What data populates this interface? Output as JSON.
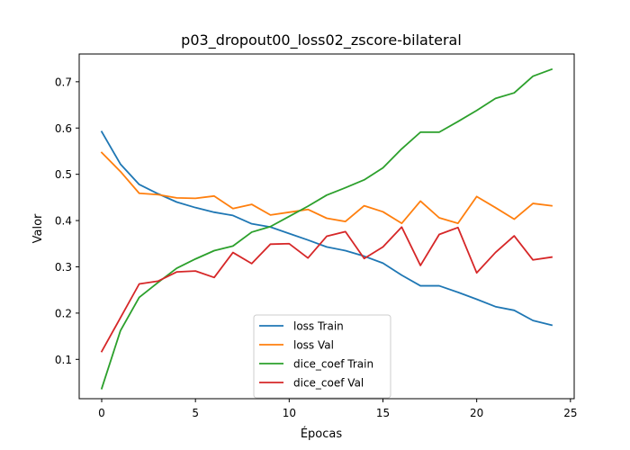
{
  "chart_data": {
    "type": "line",
    "title": "p03_dropout00_loss02_zscore-bilateral",
    "xlabel": "Épocas",
    "ylabel": "Valor",
    "xlim": [
      -1.2,
      25.2
    ],
    "ylim": [
      0.015,
      0.76
    ],
    "xticks": [
      0,
      5,
      10,
      15,
      20,
      25
    ],
    "yticks": [
      0.1,
      0.2,
      0.3,
      0.4,
      0.5,
      0.6,
      0.7
    ],
    "grid": false,
    "legend_position": "lower center",
    "x": [
      0,
      1,
      2,
      3,
      4,
      5,
      6,
      7,
      8,
      9,
      10,
      11,
      12,
      13,
      14,
      15,
      16,
      17,
      18,
      19,
      20,
      21,
      22,
      23,
      24
    ],
    "series": [
      {
        "name": "loss Train",
        "color": "#1f77b4",
        "values": [
          0.592,
          0.522,
          0.478,
          0.458,
          0.44,
          0.428,
          0.418,
          0.411,
          0.393,
          0.386,
          0.372,
          0.358,
          0.343,
          0.335,
          0.323,
          0.308,
          0.282,
          0.259,
          0.259,
          0.245,
          0.23,
          0.214,
          0.206,
          0.184,
          0.174
        ]
      },
      {
        "name": "loss Val",
        "color": "#ff7f0e",
        "values": [
          0.547,
          0.506,
          0.459,
          0.456,
          0.449,
          0.448,
          0.453,
          0.426,
          0.435,
          0.412,
          0.418,
          0.424,
          0.405,
          0.398,
          0.432,
          0.419,
          0.394,
          0.442,
          0.406,
          0.394,
          0.452,
          0.428,
          0.403,
          0.437,
          0.432
        ]
      },
      {
        "name": "dice_coef Train",
        "color": "#2ca02c",
        "values": [
          0.037,
          0.162,
          0.234,
          0.266,
          0.297,
          0.317,
          0.335,
          0.345,
          0.375,
          0.387,
          0.409,
          0.431,
          0.455,
          0.471,
          0.488,
          0.514,
          0.555,
          0.591,
          0.591,
          0.614,
          0.638,
          0.664,
          0.676,
          0.712,
          0.727
        ]
      },
      {
        "name": "dice_coef Val",
        "color": "#d62728",
        "values": [
          0.117,
          0.19,
          0.263,
          0.269,
          0.289,
          0.291,
          0.277,
          0.331,
          0.307,
          0.349,
          0.35,
          0.319,
          0.366,
          0.376,
          0.318,
          0.343,
          0.386,
          0.303,
          0.37,
          0.385,
          0.287,
          0.331,
          0.367,
          0.315,
          0.321
        ]
      }
    ]
  }
}
